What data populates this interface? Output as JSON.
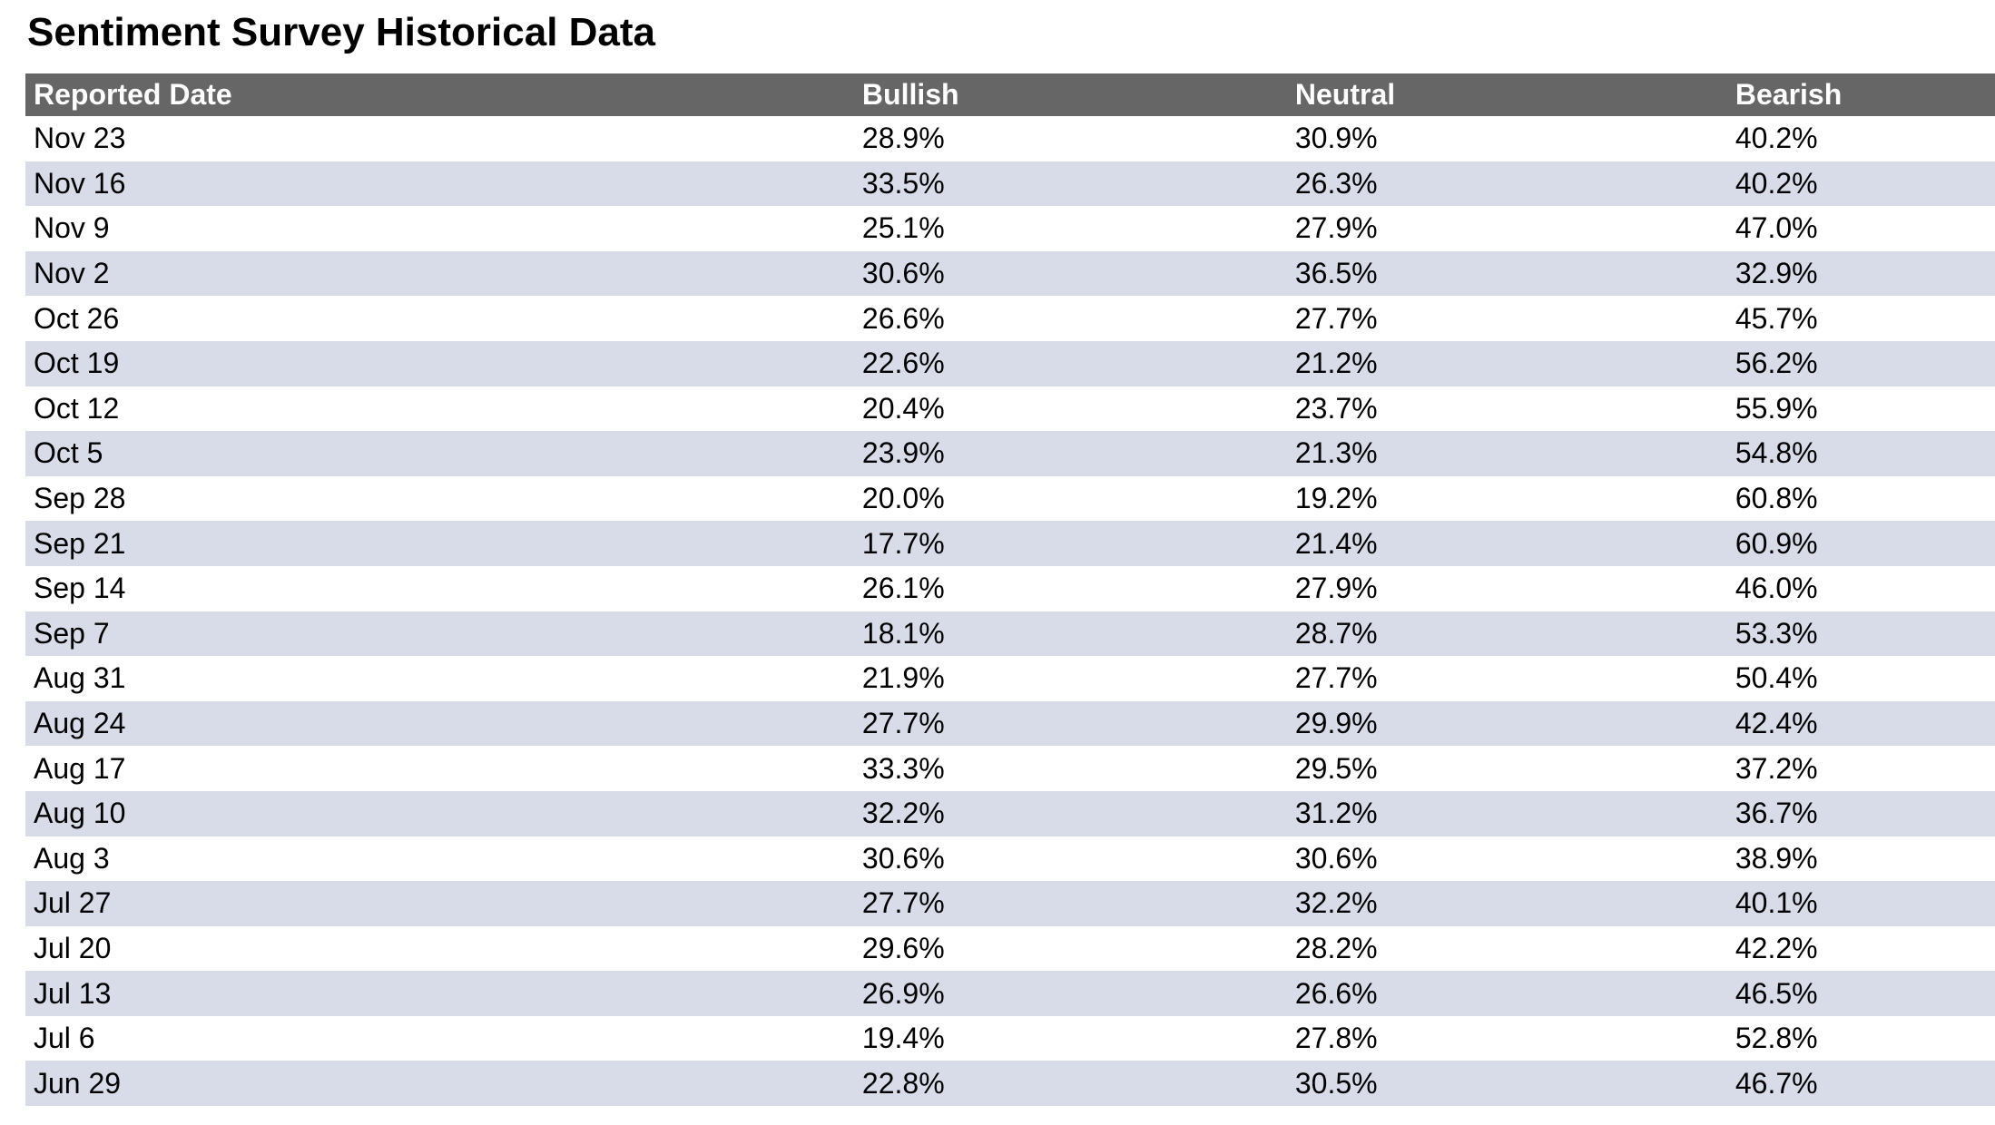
{
  "page": {
    "title": "Sentiment Survey Historical Data"
  },
  "colors": {
    "header_bg": "#666666",
    "header_text": "#ffffff",
    "stripe_bg": "#d8dce9",
    "row_bg": "#ffffff",
    "body_text": "#000000"
  },
  "table": {
    "columns": [
      "Reported Date",
      "Bullish",
      "Neutral",
      "Bearish"
    ],
    "rows": [
      [
        "Nov 23",
        "28.9%",
        "30.9%",
        "40.2%"
      ],
      [
        "Nov 16",
        "33.5%",
        "26.3%",
        "40.2%"
      ],
      [
        "Nov 9",
        "25.1%",
        "27.9%",
        "47.0%"
      ],
      [
        "Nov 2",
        "30.6%",
        "36.5%",
        "32.9%"
      ],
      [
        "Oct 26",
        "26.6%",
        "27.7%",
        "45.7%"
      ],
      [
        "Oct 19",
        "22.6%",
        "21.2%",
        "56.2%"
      ],
      [
        "Oct 12",
        "20.4%",
        "23.7%",
        "55.9%"
      ],
      [
        "Oct 5",
        "23.9%",
        "21.3%",
        "54.8%"
      ],
      [
        "Sep 28",
        "20.0%",
        "19.2%",
        "60.8%"
      ],
      [
        "Sep 21",
        "17.7%",
        "21.4%",
        "60.9%"
      ],
      [
        "Sep 14",
        "26.1%",
        "27.9%",
        "46.0%"
      ],
      [
        "Sep 7",
        "18.1%",
        "28.7%",
        "53.3%"
      ],
      [
        "Aug 31",
        "21.9%",
        "27.7%",
        "50.4%"
      ],
      [
        "Aug 24",
        "27.7%",
        "29.9%",
        "42.4%"
      ],
      [
        "Aug 17",
        "33.3%",
        "29.5%",
        "37.2%"
      ],
      [
        "Aug 10",
        "32.2%",
        "31.2%",
        "36.7%"
      ],
      [
        "Aug 3",
        "30.6%",
        "30.6%",
        "38.9%"
      ],
      [
        "Jul 27",
        "27.7%",
        "32.2%",
        "40.1%"
      ],
      [
        "Jul 20",
        "29.6%",
        "28.2%",
        "42.2%"
      ],
      [
        "Jul 13",
        "26.9%",
        "26.6%",
        "46.5%"
      ],
      [
        "Jul 6",
        "19.4%",
        "27.8%",
        "52.8%"
      ],
      [
        "Jun 29",
        "22.8%",
        "30.5%",
        "46.7%"
      ]
    ]
  },
  "chart_data": {
    "type": "table",
    "title": "Sentiment Survey Historical Data",
    "categories": [
      "Nov 23",
      "Nov 16",
      "Nov 9",
      "Nov 2",
      "Oct 26",
      "Oct 19",
      "Oct 12",
      "Oct 5",
      "Sep 28",
      "Sep 21",
      "Sep 14",
      "Sep 7",
      "Aug 31",
      "Aug 24",
      "Aug 17",
      "Aug 10",
      "Aug 3",
      "Jul 27",
      "Jul 20",
      "Jul 13",
      "Jul 6",
      "Jun 29"
    ],
    "series": [
      {
        "name": "Bullish",
        "values": [
          28.9,
          33.5,
          25.1,
          30.6,
          26.6,
          22.6,
          20.4,
          23.9,
          20.0,
          17.7,
          26.1,
          18.1,
          21.9,
          27.7,
          33.3,
          32.2,
          30.6,
          27.7,
          29.6,
          26.9,
          19.4,
          22.8
        ]
      },
      {
        "name": "Neutral",
        "values": [
          30.9,
          26.3,
          27.9,
          36.5,
          27.7,
          21.2,
          23.7,
          21.3,
          19.2,
          21.4,
          27.9,
          28.7,
          27.7,
          29.9,
          29.5,
          31.2,
          30.6,
          32.2,
          28.2,
          26.6,
          27.8,
          30.5
        ]
      },
      {
        "name": "Bearish",
        "values": [
          40.2,
          40.2,
          47.0,
          32.9,
          45.7,
          56.2,
          55.9,
          54.8,
          60.8,
          60.9,
          46.0,
          53.3,
          50.4,
          42.4,
          37.2,
          36.7,
          38.9,
          40.1,
          42.2,
          46.5,
          52.8,
          46.7
        ]
      }
    ],
    "units": "%",
    "legend_position": "none",
    "grid": false
  }
}
